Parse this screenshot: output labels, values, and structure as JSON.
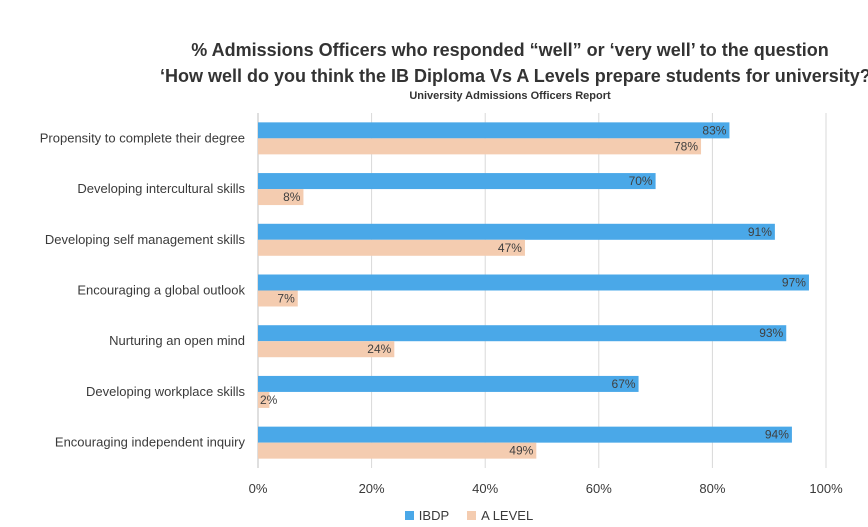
{
  "chart_data": {
    "type": "bar",
    "orientation": "horizontal",
    "title": "% Admissions Officers who responded “well” or ‘very well’ to the question",
    "title_line2": "‘How well do you think the IB Diploma Vs A Levels prepare students for university?’",
    "subtitle": "University Admissions Officers Report",
    "categories": [
      "Propensity to complete their degree",
      "Developing intercultural skills",
      "Developing self management skills",
      "Encouraging a global outlook",
      "Nurturing an open mind",
      "Developing workplace skills",
      "Encouraging independent inquiry"
    ],
    "series": [
      {
        "name": "IBDP",
        "values": [
          83,
          70,
          91,
          97,
          93,
          67,
          94
        ],
        "labels": [
          "83%",
          "70%",
          "91%",
          "97%",
          "93%",
          "67%",
          "94%"
        ],
        "color": "#4aa8e8"
      },
      {
        "name": "A LEVEL",
        "values": [
          78,
          8,
          47,
          7,
          24,
          2,
          49
        ],
        "labels": [
          "78%",
          "8%",
          "47%",
          "7%",
          "24%",
          "2%",
          "49%"
        ],
        "color": "#f4ccb0"
      }
    ],
    "xlim": [
      0,
      100
    ],
    "ticks": [
      "0%",
      "20%",
      "40%",
      "60%",
      "80%",
      "100%"
    ],
    "grid": true,
    "legend_position": "bottom"
  }
}
